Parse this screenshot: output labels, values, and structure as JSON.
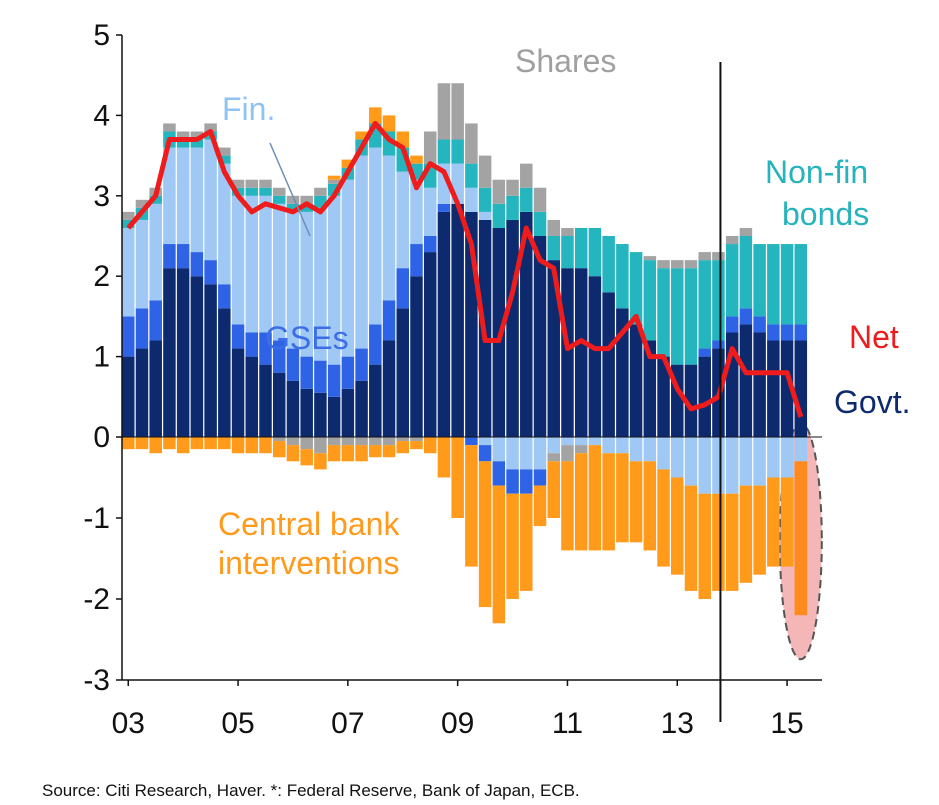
{
  "chart_data": {
    "type": "bar",
    "subtype": "stacked bar with line",
    "x_tick_labels": [
      "03",
      "05",
      "07",
      "09",
      "11",
      "13",
      "15"
    ],
    "y_tick_labels": [
      "5",
      "4",
      "3",
      "2",
      "1",
      "0",
      "-1",
      "-2",
      "-3"
    ],
    "ylim": [
      -3,
      5
    ],
    "x_range": [
      2003.0,
      2015.75
    ],
    "grid": false,
    "vertical_marker_x": 2013.75,
    "series_names": [
      "Govt.",
      "GSEs",
      "Fin.",
      "Non-fin bonds",
      "Shares",
      "Central bank interventions",
      "Net"
    ],
    "colors": {
      "govt": "#0d2a6e",
      "gses": "#2f63e6",
      "fin": "#9fc8f5",
      "nonfin": "#25b5bf",
      "shares": "#a3a3a3",
      "central_bank": "#ff9a1a",
      "net": "#ee1c1c",
      "highlight_fill": "#f4b6b6"
    },
    "points": [
      {
        "x": 2003.0,
        "govt": 1.0,
        "gses": 0.5,
        "fin": 1.1,
        "nonfin": 0.1,
        "shares": 0.1,
        "pos_extra": 0,
        "cb": -0.15,
        "neg_fin": 0,
        "neg_gses": 0,
        "neg_shares": 0,
        "net": 2.6
      },
      {
        "x": 2003.25,
        "govt": 1.1,
        "gses": 0.5,
        "fin": 1.1,
        "nonfin": 0.15,
        "shares": 0.1,
        "pos_extra": 0,
        "cb": -0.15,
        "neg_fin": 0,
        "neg_gses": 0,
        "neg_shares": 0,
        "net": 2.8
      },
      {
        "x": 2003.5,
        "govt": 1.2,
        "gses": 0.5,
        "fin": 1.2,
        "nonfin": 0.1,
        "shares": 0.1,
        "pos_extra": 0,
        "cb": -0.2,
        "neg_fin": 0,
        "neg_gses": 0,
        "neg_shares": 0,
        "net": 3.0
      },
      {
        "x": 2003.75,
        "govt": 2.1,
        "gses": 0.3,
        "fin": 1.2,
        "nonfin": 0.2,
        "shares": 0.1,
        "pos_extra": 0,
        "cb": -0.15,
        "neg_fin": 0,
        "neg_gses": 0,
        "neg_shares": 0,
        "net": 3.7
      },
      {
        "x": 2004.0,
        "govt": 2.1,
        "gses": 0.3,
        "fin": 1.2,
        "nonfin": 0.1,
        "shares": 0.1,
        "pos_extra": 0,
        "cb": -0.2,
        "neg_fin": 0,
        "neg_gses": 0,
        "neg_shares": 0,
        "net": 3.7
      },
      {
        "x": 2004.25,
        "govt": 2.0,
        "gses": 0.3,
        "fin": 1.3,
        "nonfin": 0.1,
        "shares": 0.1,
        "pos_extra": 0,
        "cb": -0.15,
        "neg_fin": 0,
        "neg_gses": 0,
        "neg_shares": 0,
        "net": 3.7
      },
      {
        "x": 2004.5,
        "govt": 1.9,
        "gses": 0.3,
        "fin": 1.5,
        "nonfin": 0.1,
        "shares": 0.1,
        "pos_extra": 0,
        "cb": -0.15,
        "neg_fin": 0,
        "neg_gses": 0,
        "neg_shares": 0,
        "net": 3.8
      },
      {
        "x": 2004.75,
        "govt": 1.6,
        "gses": 0.3,
        "fin": 1.5,
        "nonfin": 0.1,
        "shares": 0.1,
        "pos_extra": 0,
        "cb": -0.15,
        "neg_fin": 0,
        "neg_gses": 0,
        "neg_shares": 0,
        "net": 3.3
      },
      {
        "x": 2005.0,
        "govt": 1.1,
        "gses": 0.3,
        "fin": 1.6,
        "nonfin": 0.1,
        "shares": 0.1,
        "pos_extra": 0,
        "cb": -0.2,
        "neg_fin": 0,
        "neg_gses": 0,
        "neg_shares": 0,
        "net": 3.0
      },
      {
        "x": 2005.25,
        "govt": 1.0,
        "gses": 0.3,
        "fin": 1.7,
        "nonfin": 0.1,
        "shares": 0.1,
        "pos_extra": 0,
        "cb": -0.2,
        "neg_fin": 0,
        "neg_gses": 0,
        "neg_shares": 0,
        "net": 2.8
      },
      {
        "x": 2005.5,
        "govt": 0.9,
        "gses": 0.4,
        "fin": 1.7,
        "nonfin": 0.1,
        "shares": 0.1,
        "pos_extra": 0,
        "cb": -0.2,
        "neg_fin": 0,
        "neg_gses": 0,
        "neg_shares": 0,
        "net": 2.9
      },
      {
        "x": 2005.75,
        "govt": 0.8,
        "gses": 0.4,
        "fin": 1.7,
        "nonfin": 0.1,
        "shares": 0.1,
        "pos_extra": 0,
        "cb": -0.2,
        "neg_fin": 0,
        "neg_gses": 0,
        "neg_shares": -0.05,
        "net": 2.85
      },
      {
        "x": 2006.0,
        "govt": 0.7,
        "gses": 0.4,
        "fin": 1.7,
        "nonfin": 0.1,
        "shares": 0.1,
        "pos_extra": 0,
        "cb": -0.2,
        "neg_fin": 0,
        "neg_gses": 0,
        "neg_shares": -0.1,
        "net": 2.8
      },
      {
        "x": 2006.25,
        "govt": 0.6,
        "gses": 0.4,
        "fin": 1.8,
        "nonfin": 0.1,
        "shares": 0.1,
        "pos_extra": 0,
        "cb": -0.2,
        "neg_fin": 0,
        "neg_gses": 0,
        "neg_shares": -0.15,
        "net": 2.9
      },
      {
        "x": 2006.5,
        "govt": 0.55,
        "gses": 0.4,
        "fin": 1.9,
        "nonfin": 0.15,
        "shares": 0.1,
        "pos_extra": 0,
        "cb": -0.2,
        "neg_fin": 0,
        "neg_gses": 0,
        "neg_shares": -0.2,
        "net": 2.8
      },
      {
        "x": 2006.75,
        "govt": 0.5,
        "gses": 0.4,
        "fin": 2.1,
        "nonfin": 0.15,
        "shares": 0.05,
        "pos_extra": 0.05,
        "cb": -0.2,
        "neg_fin": 0,
        "neg_gses": 0,
        "neg_shares": -0.1,
        "net": 3.0
      },
      {
        "x": 2007.0,
        "govt": 0.6,
        "gses": 0.4,
        "fin": 2.2,
        "nonfin": 0.15,
        "shares": 0,
        "pos_extra": 0.1,
        "cb": -0.2,
        "neg_fin": 0,
        "neg_gses": 0,
        "neg_shares": -0.1,
        "net": 3.3
      },
      {
        "x": 2007.25,
        "govt": 0.7,
        "gses": 0.4,
        "fin": 2.4,
        "nonfin": 0.2,
        "shares": 0,
        "pos_extra": 0.1,
        "cb": -0.2,
        "neg_fin": 0,
        "neg_gses": 0,
        "neg_shares": -0.1,
        "net": 3.6
      },
      {
        "x": 2007.5,
        "govt": 0.9,
        "gses": 0.5,
        "fin": 2.2,
        "nonfin": 0.3,
        "shares": 0,
        "pos_extra": 0.2,
        "cb": -0.15,
        "neg_fin": 0,
        "neg_gses": 0,
        "neg_shares": -0.1,
        "net": 3.9
      },
      {
        "x": 2007.75,
        "govt": 1.2,
        "gses": 0.5,
        "fin": 1.8,
        "nonfin": 0.3,
        "shares": 0,
        "pos_extra": 0.2,
        "cb": -0.15,
        "neg_fin": 0,
        "neg_gses": 0,
        "neg_shares": -0.1,
        "net": 3.7
      },
      {
        "x": 2008.0,
        "govt": 1.6,
        "gses": 0.5,
        "fin": 1.2,
        "nonfin": 0.3,
        "shares": 0,
        "pos_extra": 0.2,
        "cb": -0.15,
        "neg_fin": 0,
        "neg_gses": 0,
        "neg_shares": -0.05,
        "net": 3.6
      },
      {
        "x": 2008.25,
        "govt": 2.0,
        "gses": 0.4,
        "fin": 0.8,
        "nonfin": 0.2,
        "shares": 0,
        "pos_extra": 0.1,
        "cb": -0.1,
        "neg_fin": 0,
        "neg_gses": 0,
        "neg_shares": -0.05,
        "net": 3.1
      },
      {
        "x": 2008.5,
        "govt": 2.3,
        "gses": 0.2,
        "fin": 0.6,
        "nonfin": 0.3,
        "shares": 0.4,
        "pos_extra": 0,
        "cb": -0.2,
        "neg_fin": 0,
        "neg_gses": 0,
        "neg_shares": 0,
        "net": 3.4
      },
      {
        "x": 2008.75,
        "govt": 2.8,
        "gses": 0.1,
        "fin": 0.5,
        "nonfin": 0.3,
        "shares": 0.7,
        "pos_extra": 0,
        "cb": -0.5,
        "neg_fin": 0,
        "neg_gses": 0,
        "neg_shares": 0,
        "net": 3.3
      },
      {
        "x": 2009.0,
        "govt": 2.9,
        "gses": 0,
        "fin": 0.5,
        "nonfin": 0.3,
        "shares": 0.7,
        "pos_extra": 0,
        "cb": -1.0,
        "neg_fin": 0,
        "neg_gses": 0,
        "neg_shares": 0,
        "net": 2.9
      },
      {
        "x": 2009.25,
        "govt": 2.8,
        "gses": 0,
        "fin": 0.3,
        "nonfin": 0.3,
        "shares": 0.5,
        "pos_extra": 0,
        "cb": -1.5,
        "neg_fin": 0,
        "neg_gses": -0.1,
        "neg_shares": 0,
        "net": 2.4
      },
      {
        "x": 2009.5,
        "govt": 2.7,
        "gses": 0,
        "fin": 0.1,
        "nonfin": 0.3,
        "shares": 0.4,
        "pos_extra": 0,
        "cb": -1.8,
        "neg_fin": -0.1,
        "neg_gses": -0.2,
        "neg_shares": 0,
        "net": 1.2
      },
      {
        "x": 2009.75,
        "govt": 2.6,
        "gses": 0,
        "fin": 0,
        "nonfin": 0.3,
        "shares": 0.3,
        "pos_extra": 0,
        "cb": -1.7,
        "neg_fin": -0.3,
        "neg_gses": -0.3,
        "neg_shares": 0,
        "net": 1.2
      },
      {
        "x": 2010.0,
        "govt": 2.7,
        "gses": 0,
        "fin": 0,
        "nonfin": 0.3,
        "shares": 0.2,
        "pos_extra": 0,
        "cb": -1.3,
        "neg_fin": -0.4,
        "neg_gses": -0.3,
        "neg_shares": 0,
        "net": 1.8
      },
      {
        "x": 2010.25,
        "govt": 2.8,
        "gses": 0,
        "fin": 0,
        "nonfin": 0.3,
        "shares": 0.3,
        "pos_extra": 0,
        "cb": -1.2,
        "neg_fin": -0.4,
        "neg_gses": -0.3,
        "neg_shares": 0,
        "net": 2.6
      },
      {
        "x": 2010.5,
        "govt": 2.5,
        "gses": 0,
        "fin": 0,
        "nonfin": 0.3,
        "shares": 0.3,
        "pos_extra": 0,
        "cb": -0.5,
        "neg_fin": -0.4,
        "neg_gses": -0.2,
        "neg_shares": 0,
        "net": 2.2
      },
      {
        "x": 2010.75,
        "govt": 2.2,
        "gses": 0,
        "fin": 0,
        "nonfin": 0.3,
        "shares": 0.2,
        "pos_extra": 0,
        "cb": -0.7,
        "neg_fin": -0.2,
        "neg_gses": 0,
        "neg_shares": -0.1,
        "net": 2.1
      },
      {
        "x": 2011.0,
        "govt": 2.1,
        "gses": 0,
        "fin": 0,
        "nonfin": 0.4,
        "shares": 0.1,
        "pos_extra": 0,
        "cb": -1.1,
        "neg_fin": -0.1,
        "neg_gses": 0,
        "neg_shares": -0.2,
        "net": 1.1
      },
      {
        "x": 2011.25,
        "govt": 2.1,
        "gses": 0,
        "fin": 0,
        "nonfin": 0.5,
        "shares": 0,
        "pos_extra": 0,
        "cb": -1.2,
        "neg_fin": -0.1,
        "neg_gses": 0,
        "neg_shares": -0.1,
        "net": 1.2
      },
      {
        "x": 2011.5,
        "govt": 2.0,
        "gses": 0,
        "fin": 0,
        "nonfin": 0.6,
        "shares": 0,
        "pos_extra": 0,
        "cb": -1.3,
        "neg_fin": -0.1,
        "neg_gses": 0,
        "neg_shares": 0,
        "net": 1.1
      },
      {
        "x": 2011.75,
        "govt": 1.8,
        "gses": 0,
        "fin": 0,
        "nonfin": 0.7,
        "shares": 0,
        "pos_extra": 0,
        "cb": -1.2,
        "neg_fin": -0.2,
        "neg_gses": 0,
        "neg_shares": 0,
        "net": 1.1
      },
      {
        "x": 2012.0,
        "govt": 1.6,
        "gses": 0,
        "fin": 0,
        "nonfin": 0.8,
        "shares": 0,
        "pos_extra": 0,
        "cb": -1.1,
        "neg_fin": -0.2,
        "neg_gses": 0,
        "neg_shares": 0,
        "net": 1.3
      },
      {
        "x": 2012.25,
        "govt": 1.4,
        "gses": 0,
        "fin": 0,
        "nonfin": 0.9,
        "shares": 0,
        "pos_extra": 0,
        "cb": -1.0,
        "neg_fin": -0.3,
        "neg_gses": 0,
        "neg_shares": 0,
        "net": 1.5
      },
      {
        "x": 2012.5,
        "govt": 1.2,
        "gses": 0,
        "fin": 0,
        "nonfin": 1.0,
        "shares": 0.05,
        "pos_extra": 0,
        "cb": -1.1,
        "neg_fin": -0.3,
        "neg_gses": 0,
        "neg_shares": 0,
        "net": 1.0
      },
      {
        "x": 2012.75,
        "govt": 1.0,
        "gses": 0,
        "fin": 0,
        "nonfin": 1.1,
        "shares": 0.1,
        "pos_extra": 0,
        "cb": -1.2,
        "neg_fin": -0.4,
        "neg_gses": 0,
        "neg_shares": 0,
        "net": 1.0
      },
      {
        "x": 2013.0,
        "govt": 0.9,
        "gses": 0,
        "fin": 0,
        "nonfin": 1.2,
        "shares": 0.1,
        "pos_extra": 0,
        "cb": -1.2,
        "neg_fin": -0.5,
        "neg_gses": 0,
        "neg_shares": 0,
        "net": 0.6
      },
      {
        "x": 2013.25,
        "govt": 0.9,
        "gses": 0,
        "fin": 0,
        "nonfin": 1.2,
        "shares": 0.1,
        "pos_extra": 0,
        "cb": -1.3,
        "neg_fin": -0.6,
        "neg_gses": 0,
        "neg_shares": 0,
        "net": 0.35
      },
      {
        "x": 2013.5,
        "govt": 1.0,
        "gses": 0.1,
        "fin": 0,
        "nonfin": 1.1,
        "shares": 0.1,
        "pos_extra": 0,
        "cb": -1.3,
        "neg_fin": -0.7,
        "neg_gses": 0,
        "neg_shares": 0,
        "net": 0.4
      },
      {
        "x": 2013.75,
        "govt": 1.1,
        "gses": 0.1,
        "fin": 0,
        "nonfin": 1.0,
        "shares": 0.1,
        "pos_extra": 0,
        "cb": -1.2,
        "neg_fin": -0.7,
        "neg_gses": 0,
        "neg_shares": 0,
        "net": 0.5
      },
      {
        "x": 2014.0,
        "govt": 1.3,
        "gses": 0.2,
        "fin": 0,
        "nonfin": 0.9,
        "shares": 0.1,
        "pos_extra": 0,
        "cb": -1.2,
        "neg_fin": -0.7,
        "neg_gses": 0,
        "neg_shares": 0,
        "net": 1.1
      },
      {
        "x": 2014.25,
        "govt": 1.4,
        "gses": 0.2,
        "fin": 0,
        "nonfin": 0.9,
        "shares": 0.1,
        "pos_extra": 0,
        "cb": -1.2,
        "neg_fin": -0.6,
        "neg_gses": 0,
        "neg_shares": 0,
        "net": 0.8
      },
      {
        "x": 2014.5,
        "govt": 1.3,
        "gses": 0.2,
        "fin": 0,
        "nonfin": 0.9,
        "shares": 0,
        "pos_extra": 0,
        "cb": -1.1,
        "neg_fin": -0.6,
        "neg_gses": 0,
        "neg_shares": 0,
        "net": 0.8
      },
      {
        "x": 2014.75,
        "govt": 1.2,
        "gses": 0.2,
        "fin": 0,
        "nonfin": 1.0,
        "shares": 0,
        "pos_extra": 0,
        "cb": -1.1,
        "neg_fin": -0.5,
        "neg_gses": 0,
        "neg_shares": 0,
        "net": 0.8
      },
      {
        "x": 2015.0,
        "govt": 1.2,
        "gses": 0.2,
        "fin": 0,
        "nonfin": 1.0,
        "shares": 0,
        "pos_extra": 0,
        "cb": -1.1,
        "neg_fin": -0.5,
        "neg_gses": 0,
        "neg_shares": 0,
        "net": 0.8
      },
      {
        "x": 2015.25,
        "govt": 1.2,
        "gses": 0.2,
        "fin": 0,
        "nonfin": 1.0,
        "shares": 0,
        "pos_extra": 0,
        "cb": -1.9,
        "neg_fin": -0.3,
        "neg_gses": 0,
        "neg_shares": 0,
        "net": 0.25,
        "highlight": true
      }
    ],
    "annotations": [
      {
        "text": "Shares",
        "color": "#a0a0a0"
      },
      {
        "text": "Fin.",
        "color": "#8ec3f2"
      },
      {
        "text": "Non-fin",
        "color": "#26b3be"
      },
      {
        "text": "bonds",
        "color": "#26b3be"
      },
      {
        "text": "Net",
        "color": "#ee1c1c"
      },
      {
        "text": "GSEs",
        "color": "#3c6ee6"
      },
      {
        "text": "Govt.",
        "color": "#0d2a6e"
      },
      {
        "text": "Central bank",
        "color": "#ff9a1a"
      },
      {
        "text": "interventions",
        "color": "#ff9a1a"
      }
    ]
  },
  "source_text": "Source: Citi Research, Haver. *: Federal Reserve, Bank of Japan, ECB."
}
